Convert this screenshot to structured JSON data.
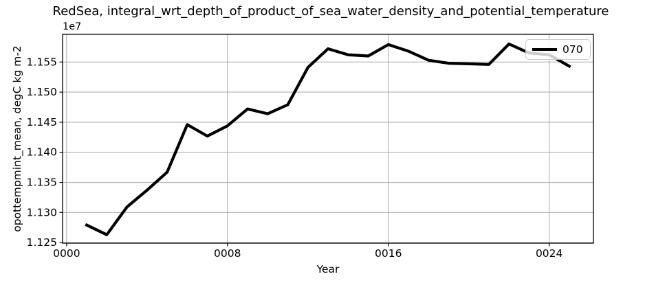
{
  "title": "RedSea, integral_wrt_depth_of_product_of_sea_water_density_and_potential_temperature",
  "axes": {
    "xlabel": "Year",
    "ylabel": "opottempmint_mean, degC kg m-2",
    "offset_text": "1e7"
  },
  "colors": {
    "line": "#000000",
    "grid": "#b0b0b0",
    "spine": "#000000",
    "legend_border": "#cccccc",
    "background": "#ffffff",
    "text": "#000000"
  },
  "chart_data": {
    "type": "line",
    "title": "RedSea, integral_wrt_depth_of_product_of_sea_water_density_and_potential_temperature",
    "xlabel": "Year",
    "ylabel": "opottempmint_mean, degC kg m-2",
    "y_values_scale": "1e7",
    "grid": true,
    "legend_position": "upper right",
    "xlim": [
      -0.2,
      26.2
    ],
    "ylim": [
      1.1249,
      1.1596
    ],
    "xticks": {
      "positions": [
        0,
        8,
        16,
        24
      ],
      "labels": [
        "0000",
        "0008",
        "0016",
        "0024"
      ]
    },
    "yticks": {
      "positions": [
        1.125,
        1.13,
        1.135,
        1.14,
        1.145,
        1.15,
        1.155
      ],
      "labels": [
        "1.125",
        "1.130",
        "1.135",
        "1.140",
        "1.145",
        "1.150",
        "1.155"
      ]
    },
    "x": [
      1,
      2,
      3,
      4,
      5,
      6,
      7,
      8,
      9,
      10,
      11,
      12,
      13,
      14,
      15,
      16,
      17,
      18,
      19,
      20,
      21,
      22,
      23,
      24,
      25
    ],
    "series": [
      {
        "name": "070",
        "color": "#000000",
        "values": [
          1.1279,
          1.1263,
          1.1309,
          1.1337,
          1.1367,
          1.1446,
          1.1427,
          1.1444,
          1.1472,
          1.1464,
          1.1479,
          1.1541,
          1.1572,
          1.1562,
          1.156,
          1.1579,
          1.1568,
          1.1553,
          1.1548,
          1.1547,
          1.1546,
          1.158,
          1.1565,
          1.1562,
          1.1543
        ]
      }
    ]
  }
}
